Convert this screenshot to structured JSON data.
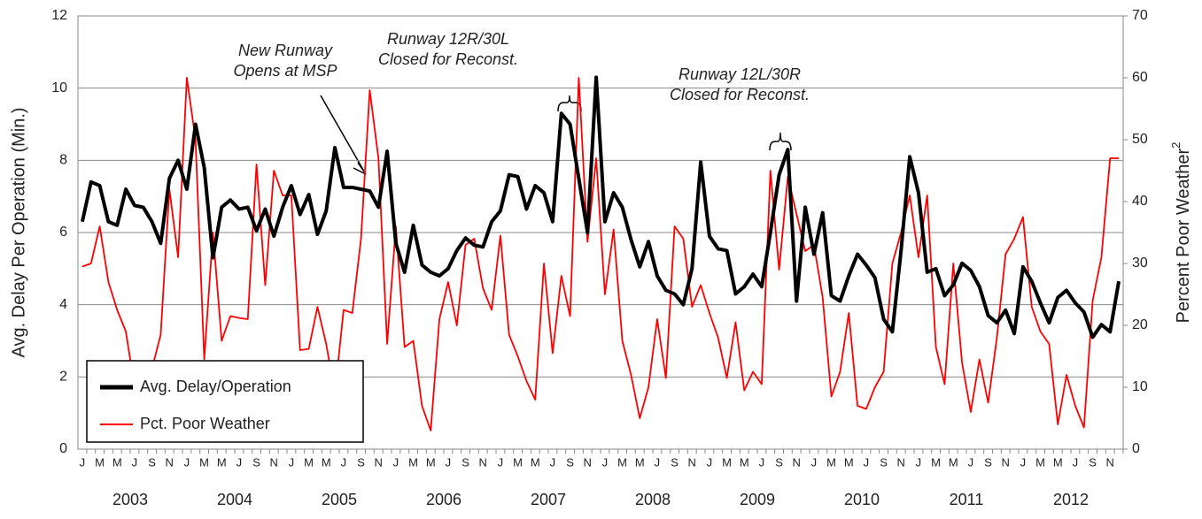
{
  "chart_data": {
    "type": "line",
    "y_label": "Avg. Delay Per Operation (Min.)",
    "y2_label": {
      "text": "Percent Poor Weather",
      "sup": "2"
    },
    "categories": [
      "J",
      null,
      "M",
      null,
      "M",
      null,
      "J",
      null,
      "S",
      null,
      "N",
      null,
      "J",
      null,
      "M",
      null,
      "M",
      null,
      "J",
      null,
      "S",
      null,
      "N",
      null,
      "J",
      null,
      "M",
      null,
      "M",
      null,
      "J",
      null,
      "S",
      null,
      "N",
      null,
      "J",
      null,
      "M",
      null,
      "M",
      null,
      "J",
      null,
      "S",
      null,
      "N",
      null,
      "J",
      null,
      "M",
      null,
      "M",
      null,
      "J",
      null,
      "S",
      null,
      "N",
      null,
      "J",
      null,
      "M",
      null,
      "M",
      null,
      "J",
      null,
      "S",
      null,
      "N",
      null,
      "J",
      null,
      "M",
      null,
      "M",
      null,
      "J",
      null,
      "S",
      null,
      "N",
      null,
      "J",
      null,
      "M",
      null,
      "M",
      null,
      "J",
      null,
      "S",
      null,
      "N",
      null,
      "J",
      null,
      "M",
      null,
      "M",
      null,
      "J",
      null,
      "S",
      null,
      "N",
      null,
      "J",
      null,
      "M",
      null,
      "M",
      null,
      "J",
      null,
      "S",
      null,
      "N",
      null
    ],
    "x_groups": [
      "2003",
      "2004",
      "2005",
      "2006",
      "2007",
      "2008",
      "2009",
      "2010",
      "2011",
      "2012"
    ],
    "ylim": [
      0,
      12
    ],
    "yticks": [
      0,
      2,
      4,
      6,
      8,
      10,
      12
    ],
    "y2lim": [
      0,
      70
    ],
    "y2ticks": [
      0,
      10,
      20,
      30,
      40,
      50,
      60,
      70
    ],
    "grid": true,
    "legend": "lower left",
    "series": [
      {
        "name": "Avg. Delay/Operation",
        "color": "#000000",
        "values": [
          6.3,
          7.4,
          7.3,
          6.3,
          6.2,
          7.2,
          6.75,
          6.7,
          6.3,
          5.7,
          7.5,
          8.0,
          7.2,
          9.0,
          7.8,
          5.3,
          6.7,
          6.9,
          6.65,
          6.7,
          6.05,
          6.65,
          5.9,
          6.7,
          7.3,
          6.5,
          7.05,
          5.95,
          6.6,
          8.35,
          7.25,
          7.25,
          7.2,
          7.15,
          6.7,
          8.25,
          5.7,
          4.9,
          6.2,
          5.1,
          4.9,
          4.8,
          5.0,
          5.5,
          5.85,
          5.65,
          5.6,
          6.3,
          6.6,
          7.6,
          7.55,
          6.65,
          7.3,
          7.1,
          6.3,
          9.3,
          9.0,
          7.5,
          6.0,
          10.3,
          6.3,
          7.1,
          6.7,
          5.8,
          5.05,
          5.75,
          4.8,
          4.4,
          4.3,
          4.0,
          5.0,
          7.95,
          5.9,
          5.55,
          5.5,
          4.3,
          4.5,
          4.85,
          4.5,
          6.0,
          7.6,
          8.3,
          4.1,
          6.7,
          5.4,
          6.55,
          4.25,
          4.1,
          4.8,
          5.4,
          5.1,
          4.75,
          3.6,
          3.25,
          5.5,
          8.1,
          7.1,
          4.9,
          5.0,
          4.25,
          4.55,
          5.15,
          4.95,
          4.5,
          3.7,
          3.5,
          3.85,
          3.2,
          5.05,
          4.65,
          4.05,
          3.5,
          4.2,
          4.4,
          4.05,
          3.8,
          3.1,
          3.45,
          3.25,
          4.65
        ]
      },
      {
        "name": "Pct. Poor Weather",
        "color": "#ff0000",
        "axis": "y2",
        "values": [
          29.5,
          30,
          36,
          27,
          22.5,
          19,
          10,
          8,
          13,
          18.5,
          42,
          31,
          60,
          50,
          14.5,
          35,
          17.5,
          21.5,
          21.2,
          21,
          46,
          26.5,
          45,
          41,
          41,
          16,
          16.2,
          23,
          17,
          9,
          22.5,
          22,
          34,
          58,
          47,
          17,
          36,
          16.5,
          17.5,
          7,
          3,
          21,
          27,
          20,
          33,
          34,
          26,
          22.5,
          34.5,
          18.5,
          15,
          11,
          8,
          30,
          15.5,
          28,
          21.5,
          60,
          33.5,
          47,
          25,
          35.5,
          17.5,
          12,
          5,
          10,
          21,
          11.5,
          36,
          34,
          23,
          26.5,
          22,
          18,
          11.5,
          20.5,
          9.5,
          12.5,
          10.5,
          45,
          29,
          44,
          38,
          32,
          33,
          24.5,
          8.5,
          12.5,
          22,
          7,
          6.5,
          10,
          12.5,
          30,
          35,
          41,
          31,
          41,
          16.5,
          10.5,
          30,
          14,
          6,
          14.5,
          7.5,
          18,
          31.5,
          34,
          37.5,
          23,
          19,
          17,
          4,
          12,
          7,
          3.5,
          24,
          31,
          47,
          47
        ]
      }
    ],
    "annotations": [
      {
        "lines": [
          "New Runway",
          "Opens at MSP"
        ]
      },
      {
        "lines": [
          "Runway 12R/30L",
          "Closed for Reconst."
        ]
      },
      {
        "lines": [
          "Runway 12L/30R",
          "Closed for Reconst."
        ]
      }
    ]
  }
}
